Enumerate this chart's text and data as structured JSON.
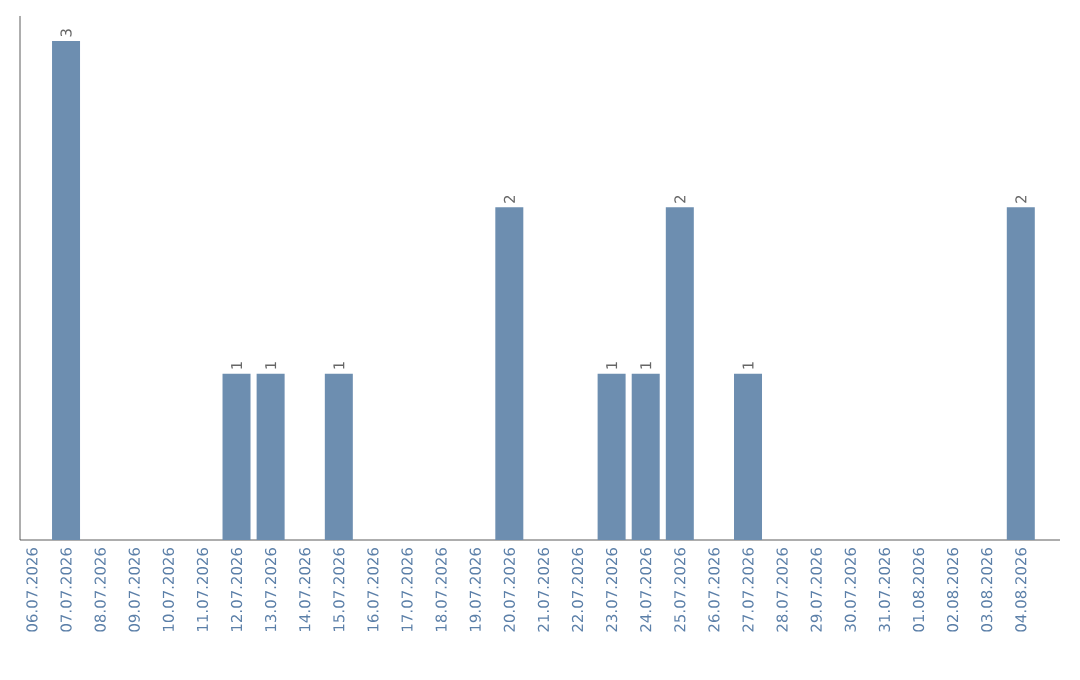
{
  "chart_data": {
    "type": "bar",
    "categories": [
      "06.07.2026",
      "07.07.2026",
      "08.07.2026",
      "09.07.2026",
      "10.07.2026",
      "11.07.2026",
      "12.07.2026",
      "13.07.2026",
      "14.07.2026",
      "15.07.2026",
      "16.07.2026",
      "17.07.2026",
      "18.07.2026",
      "19.07.2026",
      "20.07.2026",
      "21.07.2026",
      "22.07.2026",
      "23.07.2026",
      "24.07.2026",
      "25.07.2026",
      "26.07.2026",
      "27.07.2026",
      "28.07.2026",
      "29.07.2026",
      "30.07.2026",
      "31.07.2026",
      "01.08.2026",
      "02.08.2026",
      "03.08.2026",
      "04.08.2026"
    ],
    "values": [
      0,
      3,
      0,
      0,
      0,
      0,
      1,
      1,
      0,
      1,
      0,
      0,
      0,
      0,
      2,
      0,
      0,
      1,
      1,
      2,
      0,
      1,
      0,
      0,
      0,
      0,
      0,
      0,
      0,
      2
    ],
    "value_labels": [
      null,
      "3",
      null,
      null,
      null,
      null,
      "1",
      "1",
      null,
      "1",
      null,
      null,
      null,
      null,
      "2",
      null,
      null,
      "1",
      "1",
      "2",
      null,
      "1",
      null,
      null,
      null,
      null,
      null,
      null,
      null,
      "2"
    ],
    "color": "#6d8eb0",
    "tick_labels": "x"
  }
}
